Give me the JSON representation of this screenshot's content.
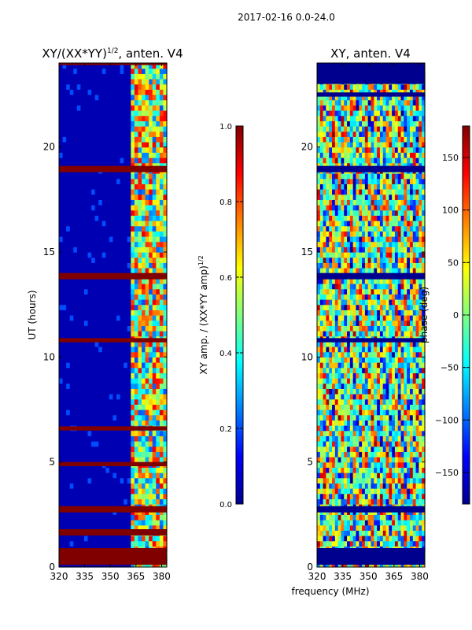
{
  "figure": {
    "suptitle": "2017-02-16 0.0-24.0",
    "xlabel_shared": "frequency (MHz)"
  },
  "chart_data": [
    {
      "type": "heatmap",
      "title_main": "XY/(XX*YY)",
      "title_sup": "1/2",
      "title_rest": ", anten. V4",
      "ylabel": "UT (hours)",
      "xlim": [
        320,
        383
      ],
      "ylim": [
        0,
        24
      ],
      "xticks": [
        320,
        335,
        350,
        365,
        380
      ],
      "yticks": [
        0,
        5,
        10,
        15,
        20
      ],
      "colorbar": {
        "label_main": "XY amp. / (XX*YY amp)",
        "label_sup": "1/2",
        "range": [
          0.0,
          1.0
        ],
        "ticks": [
          "0.0",
          "0.2",
          "0.4",
          "0.6",
          "0.8",
          "1.0"
        ],
        "tick_values": [
          0.0,
          0.2,
          0.4,
          0.6,
          0.8,
          1.0
        ],
        "colormap": "jet"
      },
      "description_regions": {
        "low_freq_value": 0.05,
        "high_freq_band": [
          361,
          383
        ],
        "high_freq_value_range": [
          0.2,
          0.9
        ],
        "flagged_value": 1.0,
        "flagged_hours": [
          [
            0.1,
            0.9
          ],
          [
            1.5,
            1.8
          ],
          [
            2.6,
            2.9
          ],
          [
            4.8,
            5.0
          ],
          [
            6.5,
            6.7
          ],
          [
            10.7,
            10.9
          ],
          [
            13.7,
            14.0
          ],
          [
            18.8,
            19.1
          ],
          [
            23.9,
            24.0
          ]
        ]
      }
    },
    {
      "type": "heatmap",
      "title_main": "XY, anten. V4",
      "ylabel": "",
      "xlim": [
        320,
        383
      ],
      "ylim": [
        0,
        24
      ],
      "xticks": [
        320,
        335,
        350,
        365,
        380
      ],
      "yticks": [
        0,
        5,
        10,
        15,
        20
      ],
      "colorbar": {
        "label_main": "phase (deg)",
        "range": [
          -180,
          180
        ],
        "ticks": [
          "150",
          "100",
          "50",
          "0",
          "−50",
          "−100",
          "−150"
        ],
        "tick_values": [
          150,
          100,
          50,
          0,
          -50,
          -100,
          -150
        ],
        "colormap": "jet"
      },
      "description_regions": {
        "value_range": [
          -180,
          180
        ],
        "flagged_hours": [
          [
            0.1,
            0.9
          ],
          [
            2.6,
            2.9
          ],
          [
            10.7,
            10.9
          ],
          [
            13.7,
            14.0
          ],
          [
            18.8,
            19.1
          ],
          [
            22.4,
            22.6
          ],
          [
            23.0,
            24.0
          ]
        ]
      }
    }
  ],
  "colors": {
    "jet_dark_blue": "#00008f",
    "jet_blue": "#0000ff",
    "jet_cyan": "#00ffff",
    "jet_yellow": "#ffff00",
    "jet_red": "#ff0000",
    "jet_dark_red": "#800000",
    "axis": "#000000"
  }
}
